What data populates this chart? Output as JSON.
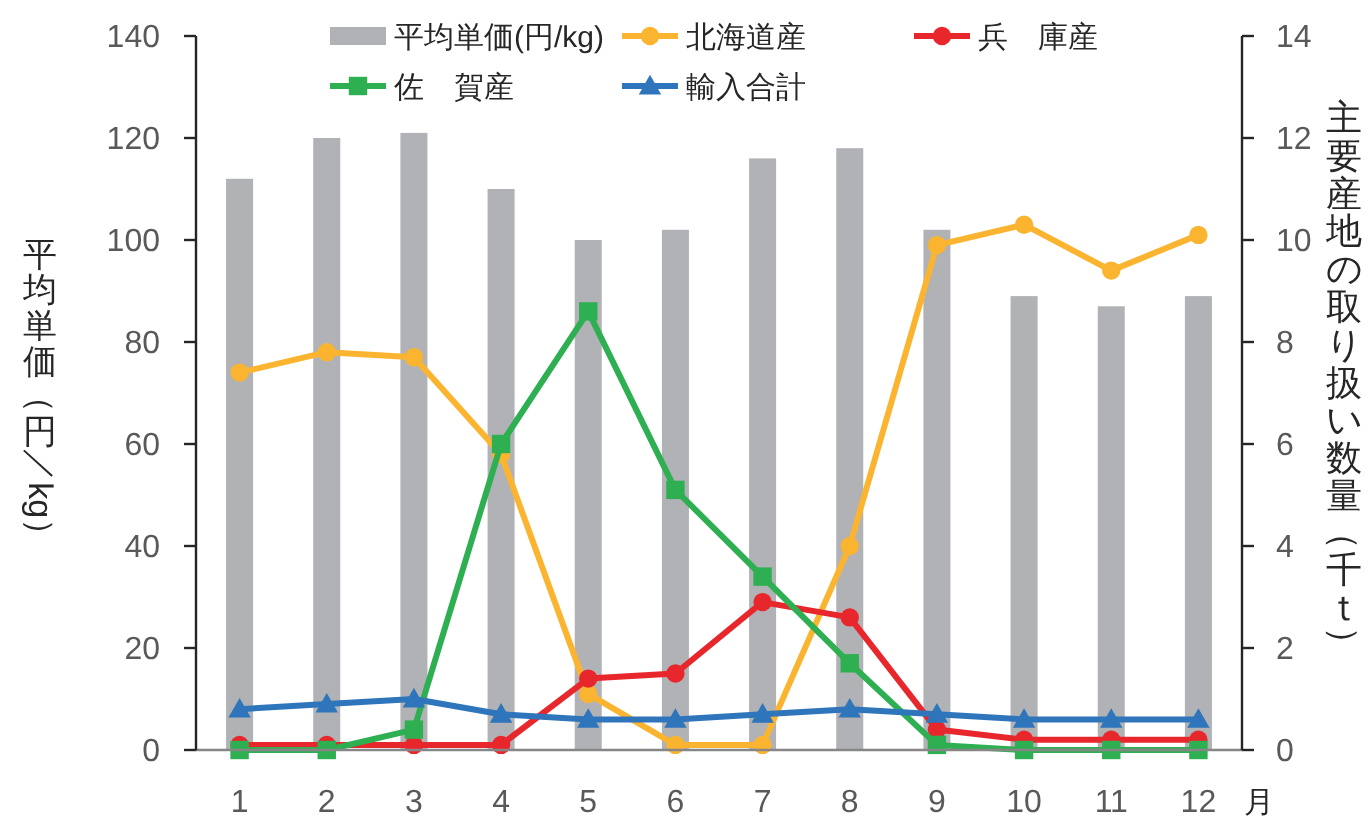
{
  "chart_data": {
    "type": "bar",
    "categories": [
      "1",
      "2",
      "3",
      "4",
      "5",
      "6",
      "7",
      "8",
      "9",
      "10",
      "11",
      "12"
    ],
    "xlabel": "月",
    "ylabel": "平均単価（円／kg）",
    "y2label": "主要産地の取り扱い数量（千ｔ）",
    "ylim": [
      0,
      140
    ],
    "yticks": [
      0,
      20,
      40,
      60,
      80,
      100,
      120,
      140
    ],
    "y2lim": [
      0,
      14
    ],
    "y2ticks": [
      0,
      2,
      4,
      6,
      8,
      10,
      12,
      14
    ],
    "legend": "top",
    "series": [
      {
        "name": "平均単価(円/kg)",
        "color": "#b1b2b6",
        "values": [
          112,
          120,
          121,
          110,
          100,
          102,
          116,
          118,
          102,
          89,
          87,
          89
        ]
      },
      {
        "name": "北海道産",
        "type": "line",
        "axis": "y2",
        "marker": "circle",
        "color": "#fbb430",
        "values": [
          7.4,
          7.8,
          7.7,
          5.8,
          1.1,
          0.1,
          0.1,
          4.0,
          9.9,
          10.3,
          9.4,
          10.1
        ]
      },
      {
        "name": "兵　庫産",
        "type": "line",
        "axis": "y2",
        "marker": "circle",
        "color": "#e8272d",
        "values": [
          0.1,
          0.1,
          0.1,
          0.1,
          1.4,
          1.5,
          2.9,
          2.6,
          0.4,
          0.2,
          0.2,
          0.2
        ]
      },
      {
        "name": "佐　賀産",
        "type": "line",
        "axis": "y2",
        "marker": "square",
        "color": "#2eaf51",
        "values": [
          0.0,
          0.0,
          0.4,
          6.0,
          8.6,
          5.1,
          3.4,
          1.7,
          0.1,
          0.0,
          0.0,
          0.0
        ]
      },
      {
        "name": "輸入合計",
        "type": "line",
        "axis": "y2",
        "marker": "triangle",
        "color": "#2f75bb",
        "values": [
          0.8,
          0.9,
          1.0,
          0.7,
          0.6,
          0.6,
          0.7,
          0.8,
          0.7,
          0.6,
          0.6,
          0.6
        ]
      }
    ]
  }
}
